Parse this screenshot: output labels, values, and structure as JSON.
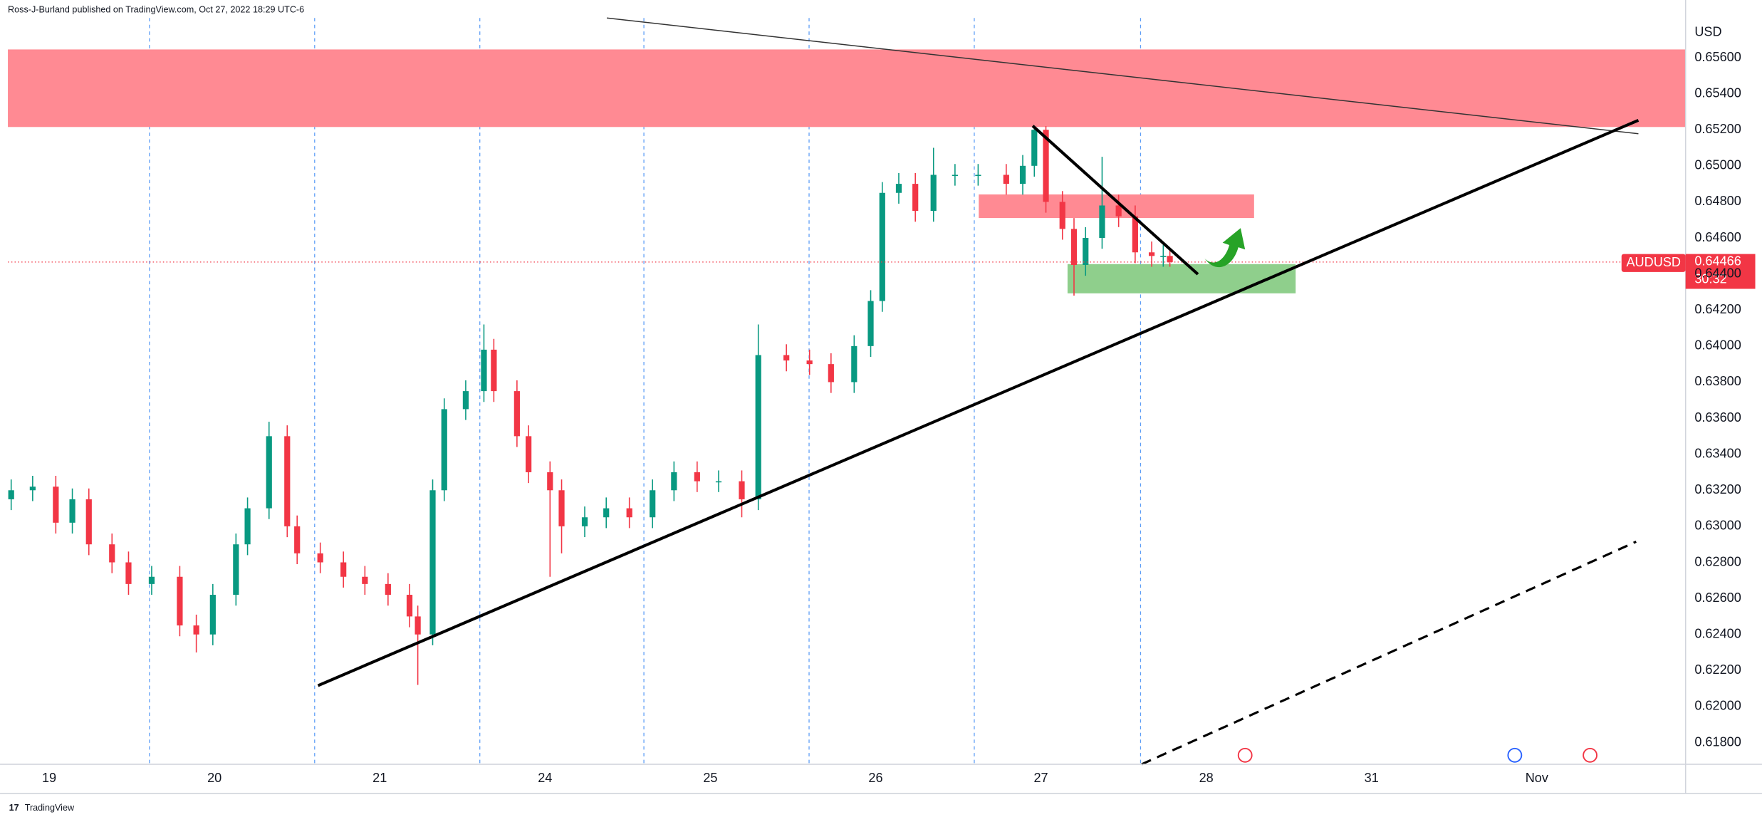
{
  "header": {
    "byline": "Ross-J-Burland published on TradingView.com, Oct 27, 2022 18:29 UTC-6"
  },
  "chart_data": {
    "type": "candlestick",
    "symbol": "AUDUSD",
    "currency": "USD",
    "countdown": "30:32",
    "up_color": "#089981",
    "down_color": "#f23645",
    "x": [
      -0.23,
      -0.1,
      0.04,
      0.14,
      0.24,
      0.38,
      0.48,
      0.62,
      0.79,
      0.89,
      0.99,
      1.13,
      1.2,
      1.33,
      1.44,
      1.5,
      1.64,
      1.78,
      1.91,
      2.05,
      2.18,
      2.23,
      2.32,
      2.39,
      2.52,
      2.63,
      2.69,
      2.83,
      2.9,
      3.03,
      3.1,
      3.24,
      3.37,
      3.51,
      3.65,
      3.78,
      3.92,
      4.05,
      4.19,
      4.29,
      4.46,
      4.6,
      4.73,
      4.87,
      4.97,
      5.04,
      5.14,
      5.24,
      5.35,
      5.48,
      5.62,
      5.79,
      5.89,
      5.96,
      6.03,
      6.13,
      6.2,
      6.27,
      6.37,
      6.47,
      6.57,
      6.67,
      6.74,
      6.78
    ],
    "open": [
      0.6315,
      0.632,
      0.6322,
      0.6302,
      0.6315,
      0.629,
      0.628,
      0.6268,
      0.6272,
      0.6245,
      0.624,
      0.6262,
      0.629,
      0.631,
      0.635,
      0.63,
      0.6285,
      0.628,
      0.6272,
      0.6268,
      0.6262,
      0.625,
      0.624,
      0.632,
      0.6365,
      0.6375,
      0.6398,
      0.6375,
      0.635,
      0.633,
      0.632,
      0.63,
      0.6305,
      0.631,
      0.6305,
      0.632,
      0.633,
      0.6325,
      0.6325,
      0.6315,
      0.6395,
      0.6392,
      0.639,
      0.638,
      0.64,
      0.6425,
      0.6485,
      0.649,
      0.6475,
      0.6495,
      0.6495,
      0.6495,
      0.649,
      0.65,
      0.652,
      0.648,
      0.6465,
      0.6445,
      0.646,
      0.6478,
      0.6472,
      0.6452,
      0.645,
      0.645
    ],
    "high": [
      0.6326,
      0.6328,
      0.6328,
      0.6321,
      0.6321,
      0.6296,
      0.6286,
      0.6278,
      0.6278,
      0.6251,
      0.6268,
      0.6296,
      0.6316,
      0.6358,
      0.6356,
      0.6306,
      0.6291,
      0.6286,
      0.6278,
      0.6274,
      0.6268,
      0.6256,
      0.6326,
      0.6371,
      0.6381,
      0.6412,
      0.6404,
      0.6381,
      0.6356,
      0.6336,
      0.6326,
      0.6311,
      0.6316,
      0.6316,
      0.6326,
      0.6336,
      0.6336,
      0.6331,
      0.6331,
      0.6412,
      0.6401,
      0.6398,
      0.6396,
      0.6406,
      0.6431,
      0.6491,
      0.6496,
      0.6496,
      0.651,
      0.6501,
      0.6501,
      0.6501,
      0.6506,
      0.6522,
      0.6522,
      0.6486,
      0.6471,
      0.6466,
      0.6505,
      0.6484,
      0.6478,
      0.6458,
      0.6456,
      0.6453
    ],
    "low": [
      0.6309,
      0.6314,
      0.6296,
      0.6296,
      0.6284,
      0.6274,
      0.6262,
      0.6262,
      0.6239,
      0.623,
      0.6234,
      0.6256,
      0.6284,
      0.6304,
      0.6294,
      0.6279,
      0.6274,
      0.6266,
      0.6262,
      0.6256,
      0.6244,
      0.6212,
      0.6234,
      0.6314,
      0.6359,
      0.6369,
      0.6369,
      0.6344,
      0.6324,
      0.6272,
      0.6285,
      0.6294,
      0.6299,
      0.6299,
      0.6299,
      0.6314,
      0.6319,
      0.6319,
      0.6305,
      0.6309,
      0.6386,
      0.6384,
      0.6374,
      0.6374,
      0.6394,
      0.6419,
      0.6479,
      0.6469,
      0.6469,
      0.6489,
      0.6489,
      0.6484,
      0.6484,
      0.6494,
      0.6474,
      0.6459,
      0.6428,
      0.6439,
      0.6454,
      0.6466,
      0.6446,
      0.6444,
      0.6444,
      0.6444
    ],
    "close": [
      0.632,
      0.6322,
      0.6302,
      0.6315,
      0.629,
      0.628,
      0.6268,
      0.6272,
      0.6245,
      0.624,
      0.6262,
      0.629,
      0.631,
      0.635,
      0.63,
      0.6285,
      0.628,
      0.6272,
      0.6268,
      0.6262,
      0.625,
      0.624,
      0.632,
      0.6365,
      0.6375,
      0.6398,
      0.6375,
      0.635,
      0.633,
      0.632,
      0.63,
      0.6305,
      0.631,
      0.6305,
      0.632,
      0.633,
      0.6325,
      0.6325,
      0.6315,
      0.6395,
      0.6392,
      0.639,
      0.638,
      0.64,
      0.6425,
      0.6485,
      0.649,
      0.6475,
      0.6495,
      0.6495,
      0.6495,
      0.649,
      0.65,
      0.652,
      0.648,
      0.6465,
      0.6445,
      0.646,
      0.6478,
      0.6472,
      0.6452,
      0.645,
      0.645,
      0.64466
    ],
    "xlim": [
      -0.25,
      9.9
    ],
    "xticks": [
      {
        "value": 0,
        "label": "19"
      },
      {
        "value": 1,
        "label": "20"
      },
      {
        "value": 2,
        "label": "21"
      },
      {
        "value": 3,
        "label": "24"
      },
      {
        "value": 4,
        "label": "25"
      },
      {
        "value": 5,
        "label": "26"
      },
      {
        "value": 6,
        "label": "27"
      },
      {
        "value": 7,
        "label": "28"
      },
      {
        "value": 8,
        "label": "31"
      },
      {
        "value": 9,
        "label": "Nov"
      }
    ],
    "ylim": [
      0.6168,
      0.6592
    ],
    "yticks": [
      {
        "value": 0.618,
        "label": "0.61800"
      },
      {
        "value": 0.62,
        "label": "0.62000"
      },
      {
        "value": 0.622,
        "label": "0.62200"
      },
      {
        "value": 0.624,
        "label": "0.62400"
      },
      {
        "value": 0.626,
        "label": "0.62600"
      },
      {
        "value": 0.628,
        "label": "0.62800"
      },
      {
        "value": 0.63,
        "label": "0.63000"
      },
      {
        "value": 0.632,
        "label": "0.63200"
      },
      {
        "value": 0.634,
        "label": "0.63400"
      },
      {
        "value": 0.636,
        "label": "0.63600"
      },
      {
        "value": 0.638,
        "label": "0.63800"
      },
      {
        "value": 0.64,
        "label": "0.64000"
      },
      {
        "value": 0.642,
        "label": "0.64200"
      },
      {
        "value": 0.644,
        "label": "0.64400"
      },
      {
        "value": 0.646,
        "label": "0.64600"
      },
      {
        "value": 0.648,
        "label": "0.64800"
      },
      {
        "value": 0.65,
        "label": "0.65000"
      },
      {
        "value": 0.652,
        "label": "0.65200"
      },
      {
        "value": 0.654,
        "label": "0.65400"
      },
      {
        "value": 0.656,
        "label": "0.65600"
      }
    ]
  },
  "footer": {
    "brand": "TradingView"
  }
}
